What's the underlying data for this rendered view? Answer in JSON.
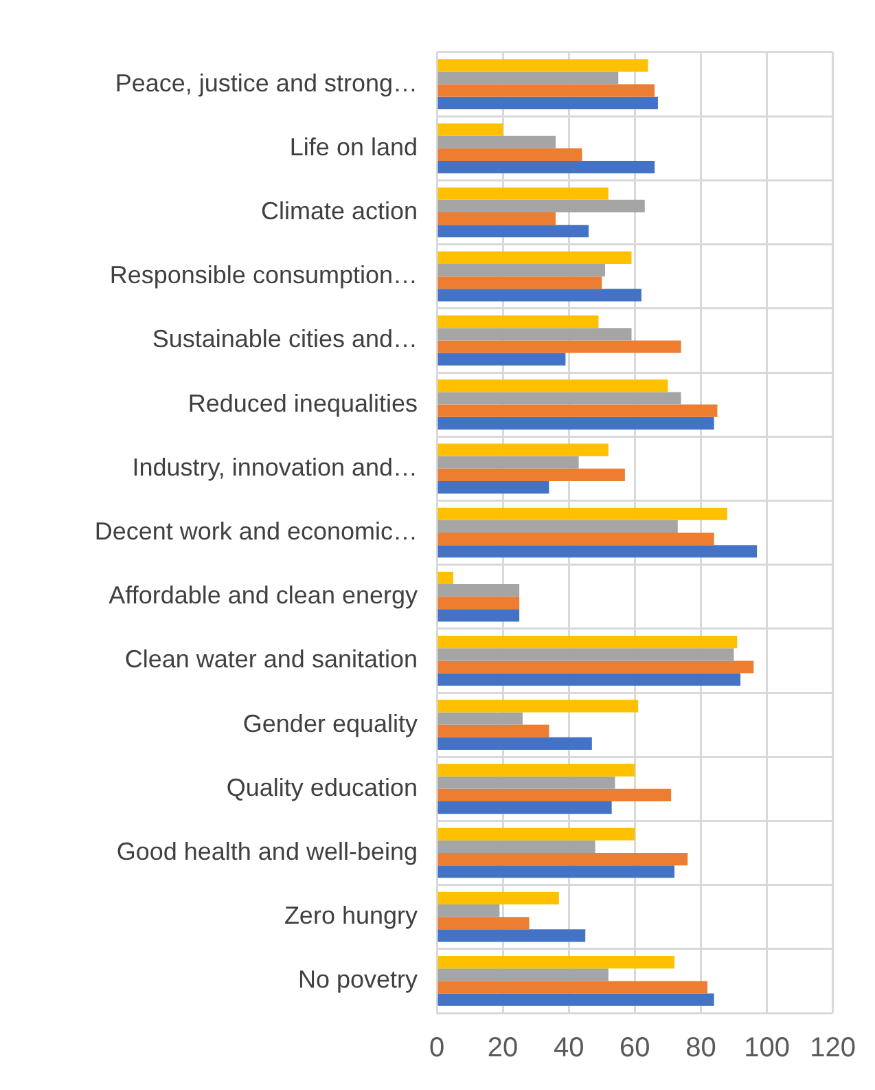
{
  "chart_data": {
    "type": "bar",
    "orientation": "horizontal",
    "categories": [
      "Peace, justice and strong…",
      "Life on land",
      "Climate action",
      "Responsible consumption…",
      "Sustainable cities and…",
      "Reduced inequalities",
      "Industry, innovation and…",
      "Decent work and economic…",
      "Affordable and clean energy",
      "Clean water and sanitation",
      "Gender equality",
      "Quality education",
      "Good health and well-being",
      "Zero hungry",
      "No povetry"
    ],
    "series": [
      {
        "color": "#ffc000",
        "values": [
          64,
          20,
          52,
          59,
          49,
          70,
          52,
          88,
          5,
          91,
          61,
          60,
          60,
          37,
          72
        ]
      },
      {
        "color": "#a5a5a5",
        "values": [
          55,
          36,
          63,
          51,
          59,
          74,
          43,
          73,
          25,
          90,
          26,
          54,
          48,
          19,
          52
        ]
      },
      {
        "color": "#ed7d31",
        "values": [
          66,
          44,
          36,
          50,
          74,
          85,
          57,
          84,
          25,
          96,
          34,
          71,
          76,
          28,
          82
        ]
      },
      {
        "color": "#4472c4",
        "values": [
          67,
          66,
          46,
          62,
          39,
          84,
          34,
          97,
          25,
          92,
          47,
          53,
          72,
          45,
          84
        ]
      }
    ],
    "xlim": [
      0,
      120
    ],
    "xticks": [
      0,
      20,
      40,
      60,
      80,
      100,
      120
    ],
    "grid": true,
    "legend": false
  }
}
